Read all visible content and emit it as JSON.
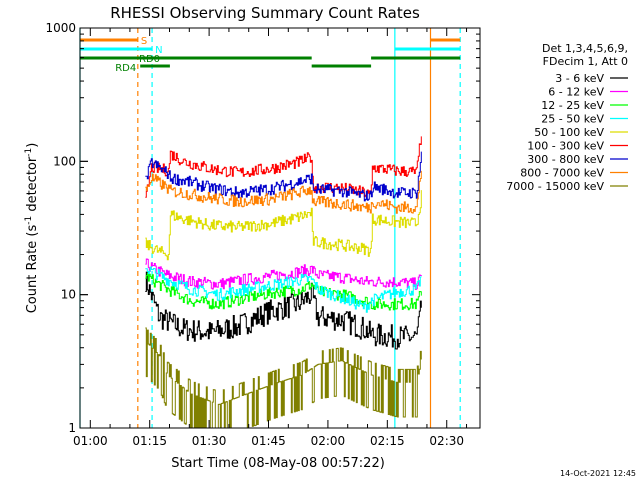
{
  "chart_data": {
    "type": "line",
    "title": "RHESSI Observing Summary Count Rates",
    "xlabel": "Start Time (08-May-08 00:57:22)",
    "ylabel_main": "Count Rate (s",
    "ylabel_sup": "-1",
    "ylabel_rest": " detector",
    "ylabel_sup2": "-1",
    "ylabel_end": ")",
    "footer": "14-Oct-2021 12:45",
    "x_unit": "minutes since 00:57:22",
    "xlim": [
      0,
      101
    ],
    "ylim": [
      1,
      1000
    ],
    "y_scale": "log",
    "x_ticks": [
      {
        "m": 2.6,
        "label": "01:00"
      },
      {
        "m": 17.6,
        "label": "01:15"
      },
      {
        "m": 32.6,
        "label": "01:30"
      },
      {
        "m": 47.6,
        "label": "01:45"
      },
      {
        "m": 62.6,
        "label": "02:00"
      },
      {
        "m": 77.6,
        "label": "02:15"
      },
      {
        "m": 92.6,
        "label": "02:30"
      }
    ],
    "y_ticks": [
      {
        "v": 1,
        "label": "1"
      },
      {
        "v": 10,
        "label": "10"
      },
      {
        "v": 100,
        "label": "100"
      },
      {
        "v": 1000,
        "label": "1000"
      }
    ],
    "legend": {
      "placement": "right",
      "header": [
        "Det 1,3,4,5,6,9,",
        "FDecim 1, Att 0"
      ]
    },
    "flags": [
      {
        "name": "SAA",
        "label": "S",
        "color": "#ff8000",
        "row": 1,
        "segments": [
          [
            0,
            14.6
          ],
          [
            88.5,
            96
          ]
        ]
      },
      {
        "name": "Night",
        "label": "N",
        "color": "#00ffff",
        "row": 2,
        "segments": [
          [
            0,
            18.2
          ],
          [
            79.5,
            96
          ]
        ]
      },
      {
        "name": "Decimation",
        "label": "RD0",
        "color": "#008000",
        "row": 3,
        "segments": [
          [
            0,
            58.5
          ],
          [
            73.5,
            96
          ]
        ]
      },
      {
        "name": "RD4",
        "label": "RD4",
        "color": "#008000",
        "row": 4,
        "segments": [
          [
            15.2,
            22.7
          ],
          [
            58.5,
            73.5
          ]
        ]
      }
    ],
    "markers": [
      {
        "x": 0.0,
        "color": "#00ffff",
        "dashed": false
      },
      {
        "x": 14.6,
        "color": "#ff8000",
        "dashed": true
      },
      {
        "x": 18.2,
        "color": "#00ffff",
        "dashed": true
      },
      {
        "x": 79.5,
        "color": "#00ffff",
        "dashed": false
      },
      {
        "x": 88.5,
        "color": "#ff8000",
        "dashed": false
      },
      {
        "x": 96.0,
        "color": "#00ffff",
        "dashed": true
      }
    ],
    "data_range": [
      16.5,
      86.4
    ],
    "series": [
      {
        "name": "3 - 6 keV",
        "color": "#000000",
        "points": [
          [
            16.5,
            13
          ],
          [
            20,
            6.8
          ],
          [
            26,
            5.5
          ],
          [
            33,
            5.2
          ],
          [
            40,
            5.8
          ],
          [
            48,
            7.5
          ],
          [
            55,
            8.5
          ],
          [
            58.5,
            10
          ],
          [
            60,
            6.8
          ],
          [
            66,
            6.5
          ],
          [
            72,
            5.5
          ],
          [
            73.5,
            5
          ],
          [
            80,
            4.8
          ],
          [
            85,
            4.8
          ],
          [
            86.4,
            9
          ]
        ]
      },
      {
        "name": "6 - 12 keV",
        "color": "#ff00ff",
        "points": [
          [
            16.5,
            17
          ],
          [
            18,
            16
          ],
          [
            22,
            14
          ],
          [
            28,
            12.5
          ],
          [
            35,
            12
          ],
          [
            42,
            13
          ],
          [
            50,
            14
          ],
          [
            56,
            15
          ],
          [
            58.5,
            15.5
          ],
          [
            60,
            14
          ],
          [
            66,
            13.5
          ],
          [
            72,
            12.5
          ],
          [
            73.5,
            12.5
          ],
          [
            80,
            12.5
          ],
          [
            85,
            12
          ],
          [
            86.4,
            14
          ]
        ]
      },
      {
        "name": "12 - 25 keV",
        "color": "#00ff00",
        "points": [
          [
            16.5,
            14
          ],
          [
            18,
            13
          ],
          [
            22,
            11
          ],
          [
            28,
            9
          ],
          [
            35,
            8.5
          ],
          [
            42,
            9.5
          ],
          [
            50,
            10.5
          ],
          [
            56,
            11
          ],
          [
            58.5,
            12
          ],
          [
            60,
            10.5
          ],
          [
            66,
            10
          ],
          [
            72,
            9
          ],
          [
            73.5,
            8.5
          ],
          [
            80,
            8.5
          ],
          [
            85,
            8.5
          ],
          [
            86.4,
            11
          ]
        ]
      },
      {
        "name": "25 - 50 keV",
        "color": "#00ffff",
        "points": [
          [
            16.5,
            16
          ],
          [
            18,
            15
          ],
          [
            22,
            13
          ],
          [
            28,
            11
          ],
          [
            35,
            10
          ],
          [
            42,
            11
          ],
          [
            50,
            12
          ],
          [
            56,
            13
          ],
          [
            58.5,
            13
          ],
          [
            60,
            11
          ],
          [
            66,
            9.5
          ],
          [
            72,
            8
          ],
          [
            73.5,
            9
          ],
          [
            80,
            10.5
          ],
          [
            85,
            11
          ],
          [
            86.4,
            14
          ]
        ]
      },
      {
        "name": "50 - 100 keV",
        "color": "#dddd00",
        "points": [
          [
            16.5,
            24
          ],
          [
            20,
            21
          ],
          [
            22.4,
            20
          ],
          [
            22.7,
            40
          ],
          [
            26,
            37
          ],
          [
            33,
            33
          ],
          [
            40,
            32
          ],
          [
            48,
            34
          ],
          [
            55,
            38
          ],
          [
            58.5,
            41
          ],
          [
            58.7,
            25
          ],
          [
            66,
            23.5
          ],
          [
            72,
            22
          ],
          [
            73.5,
            21
          ],
          [
            73.7,
            37
          ],
          [
            80,
            35
          ],
          [
            85,
            34
          ],
          [
            86.4,
            60
          ]
        ]
      },
      {
        "name": "100 - 300 keV",
        "color": "#ff0000",
        "points": [
          [
            16.5,
            50
          ],
          [
            18,
            90
          ],
          [
            22.4,
            85
          ],
          [
            22.7,
            115
          ],
          [
            26,
            100
          ],
          [
            33,
            88
          ],
          [
            40,
            82
          ],
          [
            48,
            88
          ],
          [
            55,
            98
          ],
          [
            58.5,
            108
          ],
          [
            58.7,
            65
          ],
          [
            66,
            63
          ],
          [
            72,
            58
          ],
          [
            73.5,
            55
          ],
          [
            73.7,
            90
          ],
          [
            80,
            85
          ],
          [
            85,
            83
          ],
          [
            86.4,
            190
          ]
        ]
      },
      {
        "name": "300 - 800 keV",
        "color": "#0000cc",
        "points": [
          [
            16.5,
            70
          ],
          [
            18,
            98
          ],
          [
            22.4,
            80
          ],
          [
            22.7,
            75
          ],
          [
            26,
            72
          ],
          [
            33,
            63
          ],
          [
            40,
            58
          ],
          [
            48,
            62
          ],
          [
            55,
            70
          ],
          [
            58.5,
            75
          ],
          [
            58.7,
            62
          ],
          [
            66,
            60
          ],
          [
            72,
            55
          ],
          [
            73.5,
            55
          ],
          [
            73.7,
            65
          ],
          [
            80,
            58
          ],
          [
            85,
            58
          ],
          [
            86.4,
            130
          ]
        ]
      },
      {
        "name": "800 - 7000 keV",
        "color": "#ff8000",
        "points": [
          [
            16.5,
            60
          ],
          [
            18,
            75
          ],
          [
            22.4,
            62
          ],
          [
            22.7,
            60
          ],
          [
            26,
            58
          ],
          [
            33,
            53
          ],
          [
            40,
            50
          ],
          [
            48,
            52
          ],
          [
            55,
            58
          ],
          [
            58.5,
            62
          ],
          [
            58.7,
            50
          ],
          [
            66,
            48
          ],
          [
            72,
            45
          ],
          [
            73.5,
            45
          ],
          [
            73.7,
            50
          ],
          [
            80,
            45
          ],
          [
            85,
            45
          ],
          [
            86.4,
            100
          ]
        ]
      },
      {
        "name": "7000 - 15000 keV",
        "color": "#808000",
        "points": [
          [
            16.5,
            4.5
          ],
          [
            20,
            3.5
          ],
          [
            22,
            2.5
          ],
          [
            28,
            1.8
          ],
          [
            35,
            1.5
          ],
          [
            42,
            1.8
          ],
          [
            50,
            2.2
          ],
          [
            56,
            2.5
          ],
          [
            58.5,
            2.8
          ],
          [
            60,
            3
          ],
          [
            66,
            3.2
          ],
          [
            70,
            2.8
          ],
          [
            73.5,
            2.5
          ],
          [
            80,
            2.2
          ],
          [
            85,
            2.2
          ],
          [
            86.4,
            3.5
          ]
        ]
      }
    ]
  }
}
